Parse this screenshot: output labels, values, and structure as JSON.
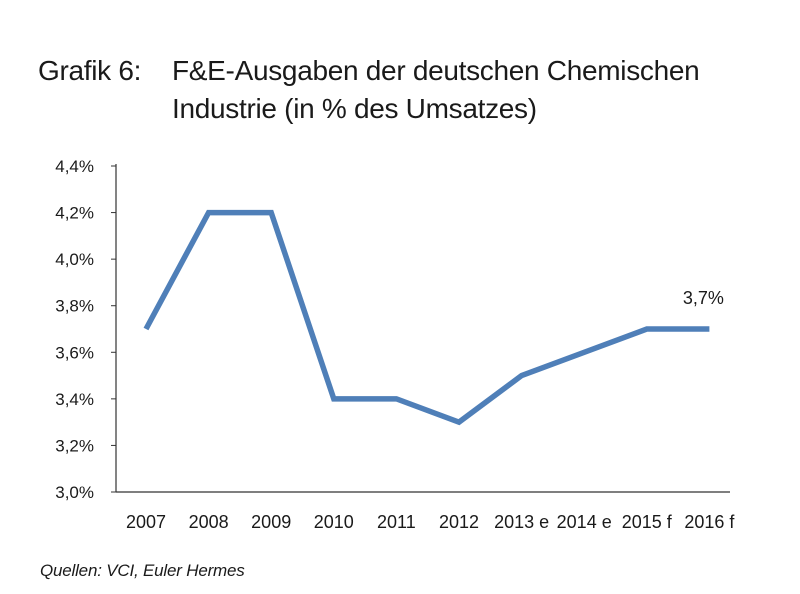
{
  "title": {
    "prefix": "Grafik 6:",
    "text": "F&E-Ausgaben der deutschen Chemischen Industrie (in % des Umsatzes)"
  },
  "source": "Quellen: VCI, Euler Hermes",
  "colors": {
    "line": "#4f7fb8",
    "axis": "#333333",
    "text": "#1a1a1a"
  },
  "chart_data": {
    "type": "line",
    "title": "F&E-Ausgaben der deutschen Chemischen Industrie (in % des Umsatzes)",
    "xlabel": "",
    "ylabel": "",
    "categories": [
      "2007",
      "2008",
      "2009",
      "2010",
      "2011",
      "2012",
      "2013 e",
      "2014 e",
      "2015 f",
      "2016 f"
    ],
    "series": [
      {
        "name": "F&E-Ausgaben in % des Umsatzes",
        "values": [
          3.7,
          4.2,
          4.2,
          3.4,
          3.4,
          3.3,
          3.5,
          3.6,
          3.7,
          3.7
        ]
      }
    ],
    "ylim": [
      3.0,
      4.4
    ],
    "yticks": [
      "3,0%",
      "3,2%",
      "3,4%",
      "3,6%",
      "3,8%",
      "4,0%",
      "4,2%",
      "4,4%"
    ],
    "ytick_values": [
      3.0,
      3.2,
      3.4,
      3.6,
      3.8,
      4.0,
      4.2,
      4.4
    ],
    "annotations": [
      {
        "index": 9,
        "text": "3,7%"
      }
    ],
    "grid": false,
    "legend": "none"
  }
}
